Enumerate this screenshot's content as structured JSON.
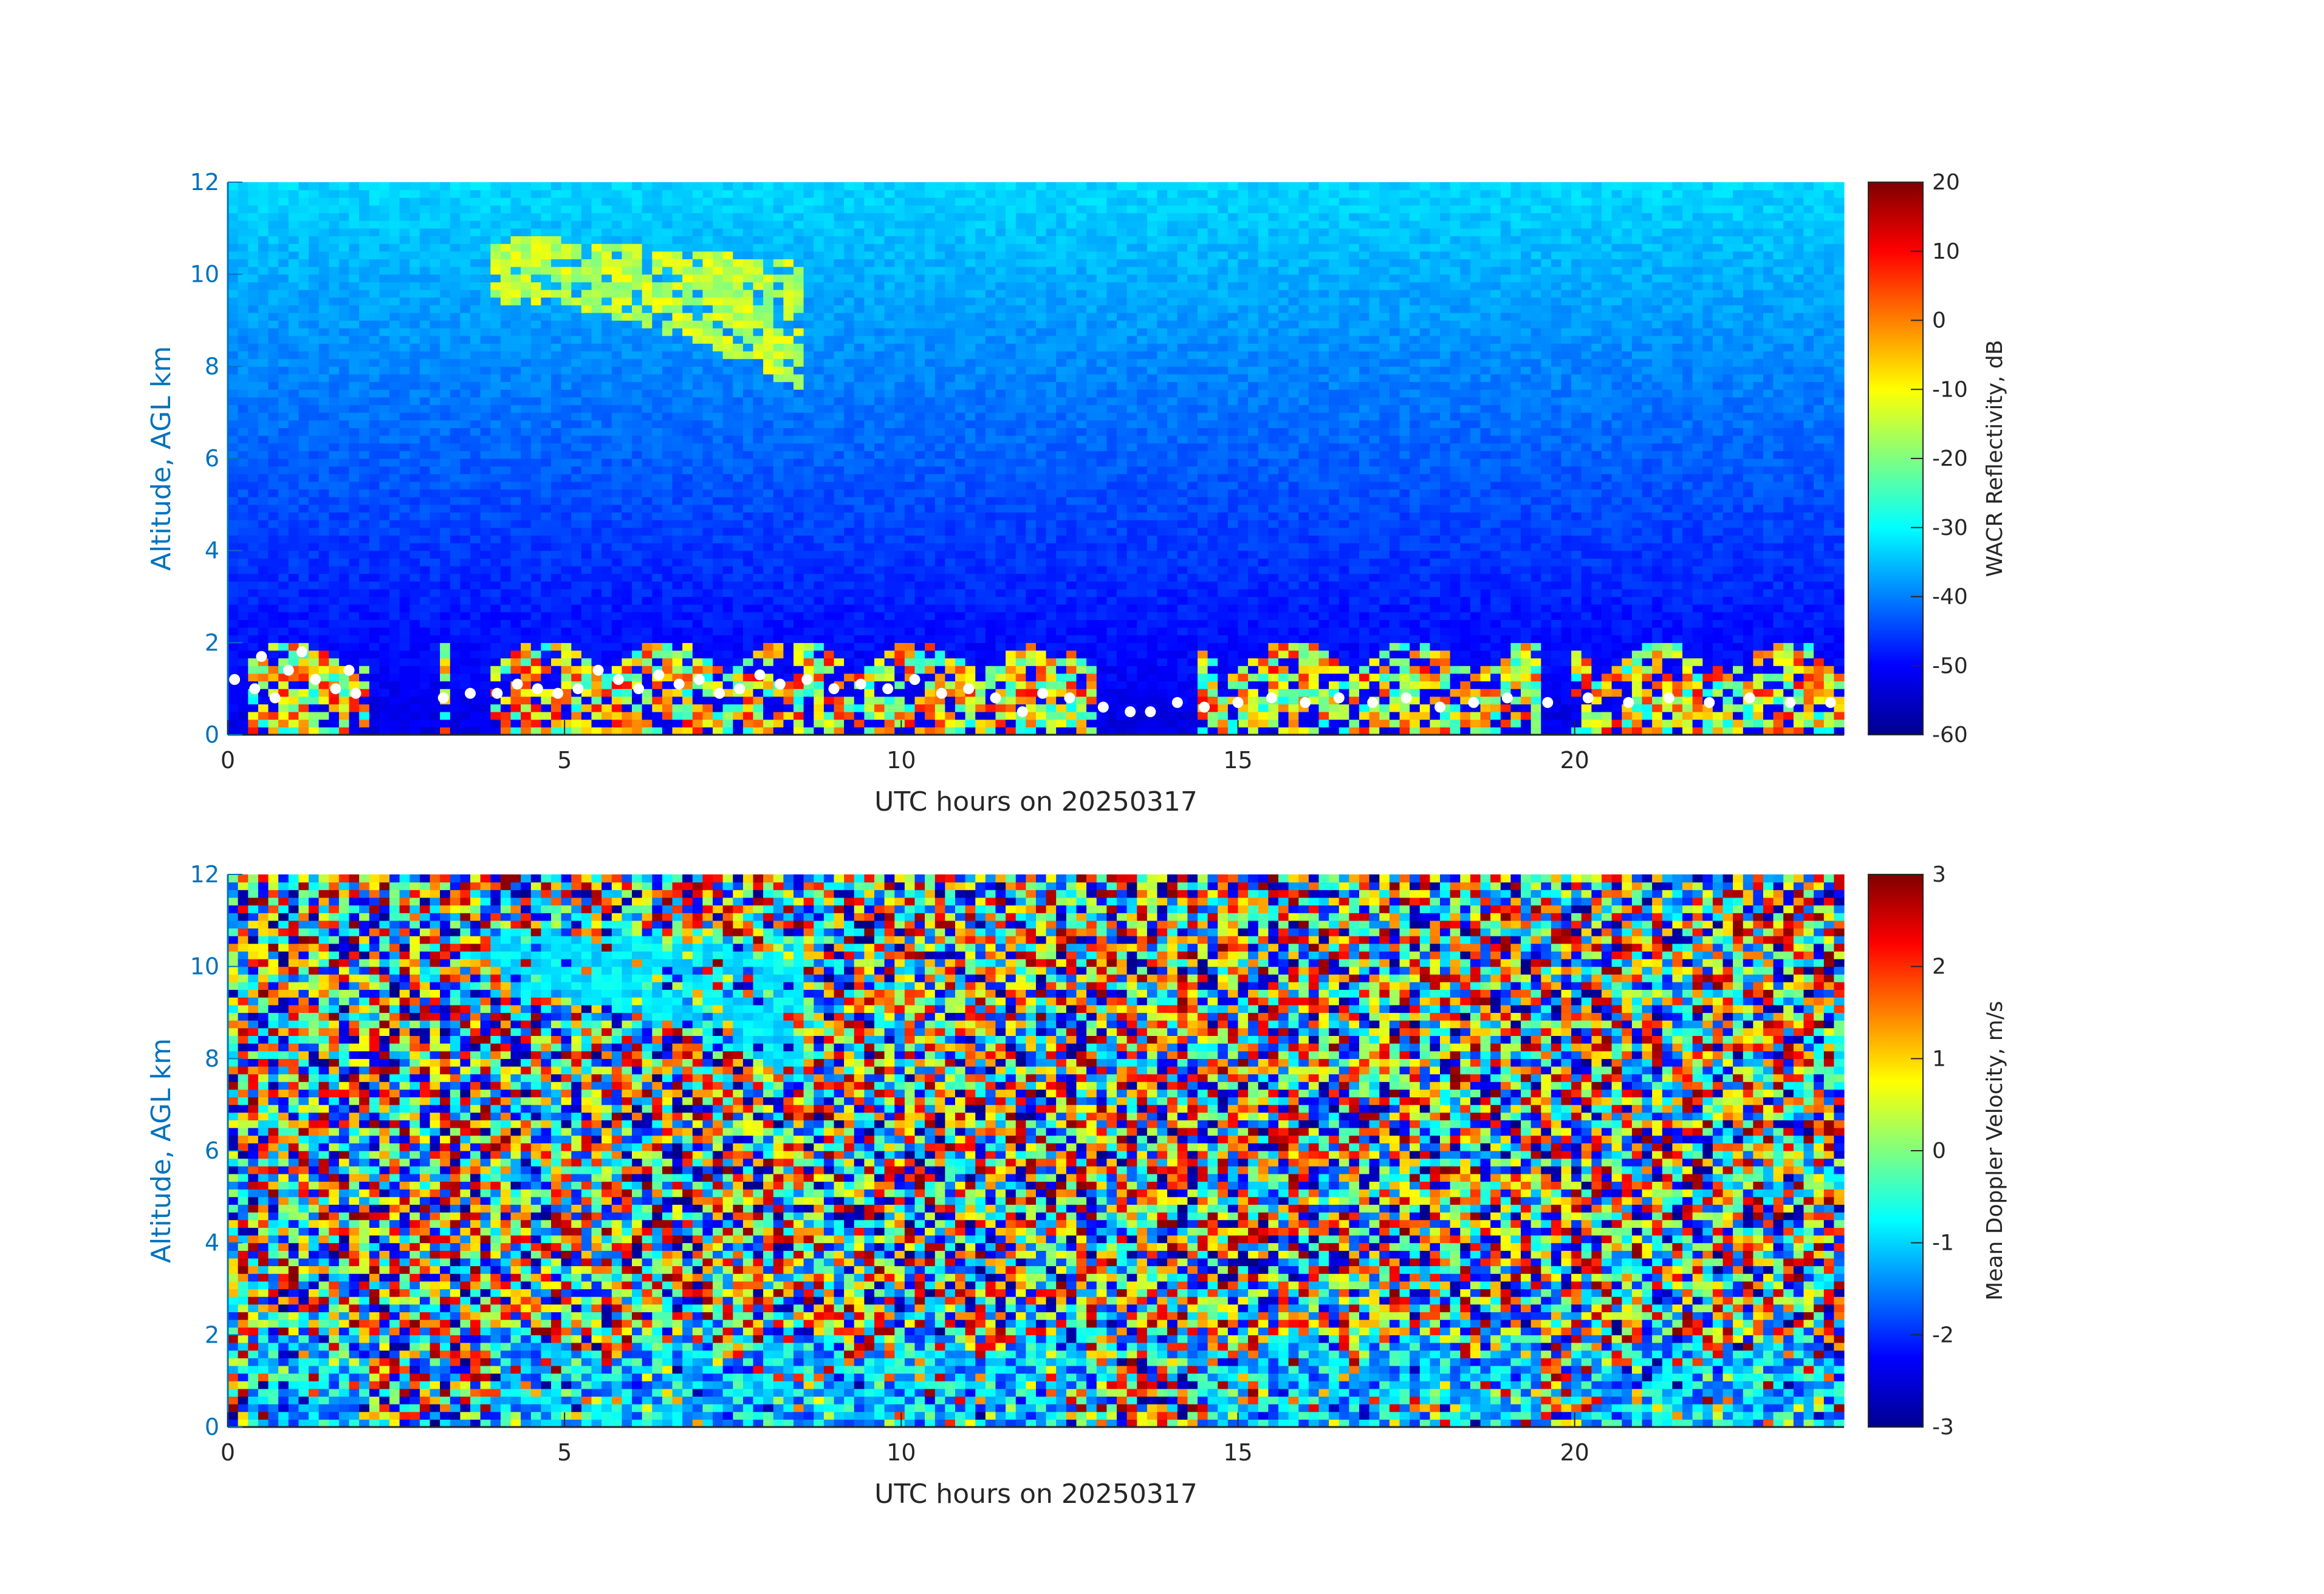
{
  "chart_data": [
    {
      "type": "heatmap",
      "title": "",
      "xlabel": "UTC hours on 20250317",
      "ylabel": "Altitude, AGL km",
      "xlim": [
        0,
        24
      ],
      "ylim": [
        0,
        12
      ],
      "xticks": [
        0,
        5,
        10,
        15,
        20
      ],
      "yticks": [
        0,
        2,
        4,
        6,
        8,
        10,
        12
      ],
      "grid": false,
      "colormap": "jet",
      "colorbar": {
        "label": "WACR Reflectivity, dB",
        "range": [
          -60,
          20
        ],
        "ticks": [
          -60,
          -50,
          -40,
          -30,
          -20,
          -10,
          0,
          10,
          20
        ]
      },
      "background": {
        "description": "noise floor increasing with altitude",
        "value_at_0km": -52,
        "value_at_12km": -33
      },
      "cloud_features": [
        {
          "name": "upper cirrus",
          "x_range": [
            3.8,
            8.5
          ],
          "altitude_range": [
            7.3,
            10.8
          ],
          "value_range": [
            -20,
            -10
          ]
        },
        {
          "name": "boundary layer clouds",
          "x_range": [
            0.3,
            24
          ],
          "altitude_range": [
            0,
            2.0
          ],
          "value_range": [
            -30,
            10
          ]
        }
      ],
      "overlay_series": {
        "name": "",
        "color": "#ffffff",
        "marker": "circle",
        "points": [
          [
            0.1,
            1.2
          ],
          [
            0.4,
            1.0
          ],
          [
            0.5,
            1.7
          ],
          [
            0.7,
            0.8
          ],
          [
            0.9,
            1.4
          ],
          [
            1.1,
            1.8
          ],
          [
            1.3,
            1.2
          ],
          [
            1.6,
            1.0
          ],
          [
            1.8,
            1.4
          ],
          [
            1.9,
            0.9
          ],
          [
            3.2,
            0.8
          ],
          [
            3.6,
            0.9
          ],
          [
            4.0,
            0.9
          ],
          [
            4.3,
            1.1
          ],
          [
            4.6,
            1.0
          ],
          [
            4.9,
            0.9
          ],
          [
            5.2,
            1.0
          ],
          [
            5.5,
            1.4
          ],
          [
            5.8,
            1.2
          ],
          [
            6.1,
            1.0
          ],
          [
            6.4,
            1.3
          ],
          [
            6.7,
            1.1
          ],
          [
            7.0,
            1.2
          ],
          [
            7.3,
            0.9
          ],
          [
            7.6,
            1.0
          ],
          [
            7.9,
            1.3
          ],
          [
            8.2,
            1.1
          ],
          [
            8.6,
            1.2
          ],
          [
            9.0,
            1.0
          ],
          [
            9.4,
            1.1
          ],
          [
            9.8,
            1.0
          ],
          [
            10.2,
            1.2
          ],
          [
            10.6,
            0.9
          ],
          [
            11.0,
            1.0
          ],
          [
            11.4,
            0.8
          ],
          [
            11.8,
            0.5
          ],
          [
            12.1,
            0.9
          ],
          [
            12.5,
            0.8
          ],
          [
            13.0,
            0.6
          ],
          [
            13.4,
            0.5
          ],
          [
            13.7,
            0.5
          ],
          [
            14.1,
            0.7
          ],
          [
            14.5,
            0.6
          ],
          [
            15.0,
            0.7
          ],
          [
            15.5,
            0.8
          ],
          [
            16.0,
            0.7
          ],
          [
            16.5,
            0.8
          ],
          [
            17.0,
            0.7
          ],
          [
            17.5,
            0.8
          ],
          [
            18.0,
            0.6
          ],
          [
            18.5,
            0.7
          ],
          [
            19.0,
            0.8
          ],
          [
            19.6,
            0.7
          ],
          [
            20.2,
            0.8
          ],
          [
            20.8,
            0.7
          ],
          [
            21.4,
            0.8
          ],
          [
            22.0,
            0.7
          ],
          [
            22.6,
            0.8
          ],
          [
            23.2,
            0.7
          ],
          [
            23.8,
            0.7
          ]
        ]
      }
    },
    {
      "type": "heatmap",
      "title": "",
      "xlabel": "UTC hours on 20250317",
      "ylabel": "Altitude, AGL km",
      "xlim": [
        0,
        24
      ],
      "ylim": [
        0,
        12
      ],
      "xticks": [
        0,
        5,
        10,
        15,
        20
      ],
      "yticks": [
        0,
        2,
        4,
        6,
        8,
        10,
        12
      ],
      "grid": false,
      "colormap": "jet",
      "colorbar": {
        "label": "Mean Doppler Velocity, m/s",
        "range": [
          -3,
          3
        ],
        "ticks": [
          -3,
          -2,
          -1,
          0,
          1,
          2,
          3
        ]
      },
      "background": {
        "description": "random noise spanning full colormap range",
        "value_range": [
          -3,
          3
        ]
      },
      "cloud_features": [
        {
          "name": "upper cirrus",
          "x_range": [
            3.8,
            8.5
          ],
          "altitude_range": [
            7.3,
            10.8
          ],
          "value_range": [
            -1.2,
            -0.6
          ]
        },
        {
          "name": "boundary layer clouds",
          "x_range": [
            0.3,
            24
          ],
          "altitude_range": [
            0,
            2.0
          ],
          "value_range": [
            -2.0,
            -0.2
          ]
        }
      ]
    }
  ]
}
